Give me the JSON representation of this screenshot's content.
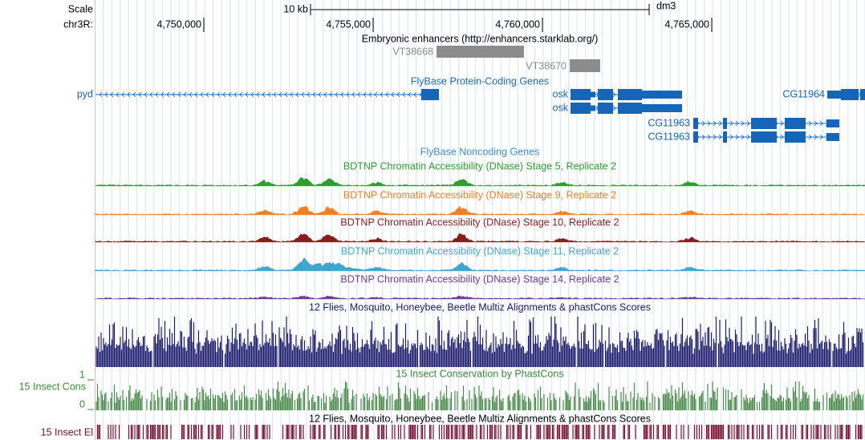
{
  "scale": {
    "label": "Scale",
    "bar_label": "10 kb",
    "assembly": "dm3"
  },
  "position": {
    "label": "chr3R:",
    "ticks": [
      {
        "value": 4750000,
        "label": "4,750,000"
      },
      {
        "value": 4755000,
        "label": "4,755,000"
      },
      {
        "value": 4760000,
        "label": "4,760,000"
      },
      {
        "value": 4765000,
        "label": "4,765,000"
      }
    ]
  },
  "enhancers": {
    "title": "Embryonic enhancers (http://enhancers.starklab.org/)",
    "features": [
      "VT38668",
      "VT38670"
    ]
  },
  "genes": {
    "title": "FlyBase Protein-Coding Genes",
    "features": [
      "pyd",
      "osk",
      "osk",
      "CG11964",
      "CG11963",
      "CG11963"
    ]
  },
  "noncoding": {
    "title": "FlyBase Noncoding Genes"
  },
  "dnase": [
    {
      "title": "BDTNP Chromatin Accessibility (DNase) Stage 5, Replicate 2",
      "color": "#2ca02c"
    },
    {
      "title": "BDTNP Chromatin Accessibility (DNase) Stage 9, Replicate 2",
      "color": "#f28020"
    },
    {
      "title": "BDTNP Chromatin Accessibility (DNase) Stage 10, Replicate 2",
      "color": "#8c1c1c"
    },
    {
      "title": "BDTNP Chromatin Accessibility (DNase) Stage 11, Replicate 2",
      "color": "#3fa6cf"
    },
    {
      "title": "BDTNP Chromatin Accessibility (DNase) Stage 14, Replicate 2",
      "color": "#6a3a9a"
    }
  ],
  "multiz": {
    "title": "12 Flies, Mosquito, Honeybee, Beetle Multiz Alignments & phastCons Scores"
  },
  "phastcons": {
    "title": "15 Insect Conservation by PhastCons",
    "label": "15 Insect Cons",
    "axis_max": "1",
    "axis_min": "0"
  },
  "elements": {
    "title": "12 Flies, Mosquito, Honeybee, Beetle Multiz Alignments & phastCons Scores",
    "label": "15 Insect El"
  }
}
